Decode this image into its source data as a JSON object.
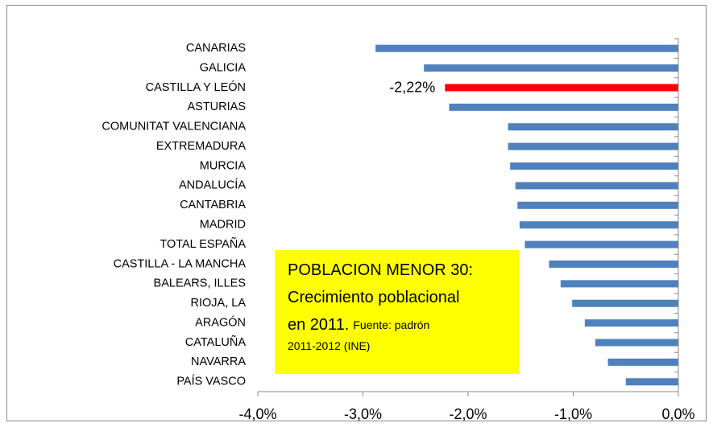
{
  "chart_data": {
    "type": "barh",
    "categories": [
      "CANARIAS",
      "GALICIA",
      "CASTILLA Y LEÓN",
      "ASTURIAS",
      "COMUNITAT VALENCIANA",
      "EXTREMADURA",
      "MURCIA",
      "ANDALUCÍA",
      "CANTABRIA",
      "MADRID",
      "TOTAL ESPAÑA",
      "CASTILLA - LA MANCHA",
      "BALEARS, ILLES",
      "RIOJA, LA",
      "ARAGÓN",
      "CATALUÑA",
      "NAVARRA",
      "PAÍS VASCO"
    ],
    "values": [
      -2.88,
      -2.42,
      -2.22,
      -2.18,
      -1.62,
      -1.62,
      -1.6,
      -1.55,
      -1.53,
      -1.51,
      -1.46,
      -1.23,
      -1.12,
      -1.01,
      -0.89,
      -0.79,
      -0.67,
      -0.5
    ],
    "value_labels": [
      null,
      null,
      "-2,22%",
      null,
      null,
      null,
      null,
      null,
      null,
      null,
      null,
      null,
      null,
      null,
      null,
      null,
      null,
      null
    ],
    "colors": [
      "#4f81bd",
      "#4f81bd",
      "#ff0000",
      "#4f81bd",
      "#4f81bd",
      "#4f81bd",
      "#4f81bd",
      "#4f81bd",
      "#4f81bd",
      "#4f81bd",
      "#4f81bd",
      "#4f81bd",
      "#4f81bd",
      "#4f81bd",
      "#4f81bd",
      "#4f81bd",
      "#4f81bd",
      "#4f81bd"
    ],
    "xlim": [
      -4,
      0
    ],
    "xticks": [
      {
        "value": -4,
        "label": "-4,0%"
      },
      {
        "value": -3,
        "label": "-3,0%"
      },
      {
        "value": -2,
        "label": "-2,0%"
      },
      {
        "value": -1,
        "label": "-1,0%"
      },
      {
        "value": 0,
        "label": "0,0%"
      }
    ],
    "annotation": {
      "lines": [
        "POBLACION MENOR 30:",
        "Crecimiento poblacional",
        "en 2011."
      ],
      "source_lines": [
        "Fuente: padrón",
        "2011-2012 (INE)"
      ],
      "color": "#ffff00"
    }
  }
}
